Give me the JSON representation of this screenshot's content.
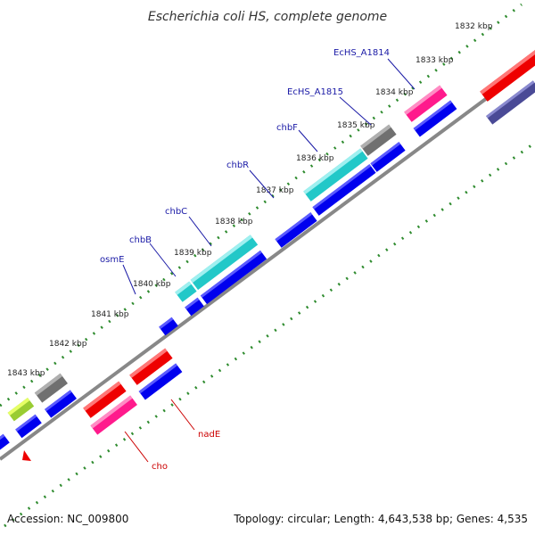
{
  "title": "Escherichia coli HS, complete genome",
  "footer": {
    "accession": "Accession: NC_009800",
    "summary": "Topology: circular; Length: 4,643,538 bp; Genes: 4,535"
  },
  "kbp_ticks": [
    "1832 kbp",
    "1833 kbp",
    "1834 kbp",
    "1835 kbp",
    "1836 kbp",
    "1837 kbp",
    "1838 kbp",
    "1839 kbp",
    "1840 kbp",
    "1841 kbp",
    "1842 kbp",
    "1843 kbp"
  ],
  "gene_labels": [
    "EcHS_A1814",
    "EcHS_A1815",
    "chbF",
    "chbR",
    "chbC",
    "chbB",
    "osmE",
    "nadE",
    "cho"
  ],
  "colors": {
    "backbone": "#888888",
    "tick_dots": "#2e8b2e",
    "cds_blue": "#0000ee",
    "red": "#ee0000",
    "pink": "#ff1a8c",
    "cyan": "#22c8c8",
    "grey": "#707070",
    "navy": "#4a4a96",
    "lime": "#99cc33",
    "label_blue": "#1a1aa6",
    "label_red": "#cc0000"
  }
}
